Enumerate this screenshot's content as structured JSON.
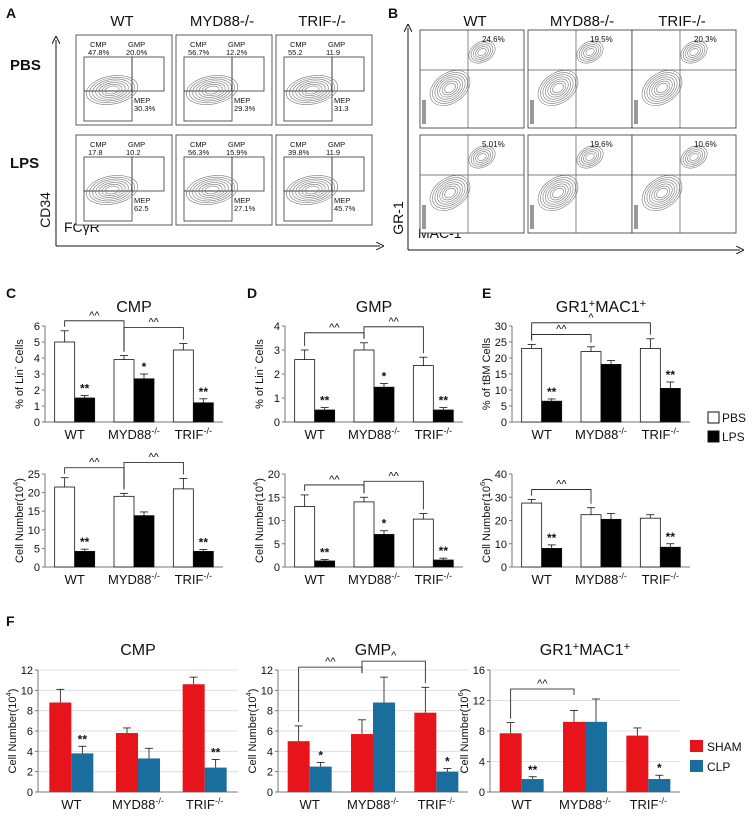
{
  "panel_letters": {
    "A": "A",
    "B": "B",
    "C": "C",
    "D": "D",
    "E": "E",
    "F": "F"
  },
  "flow_a": {
    "col_headers": [
      "WT",
      "MYD88-/-",
      "TRIF-/-"
    ],
    "row_labels": [
      "PBS",
      "LPS"
    ],
    "y_axis": "CD34",
    "x_axis": "FCγR",
    "panels": [
      [
        {
          "cmp": [
            "CMP",
            "47.8%"
          ],
          "gmp": [
            "GMP",
            "20.0%"
          ],
          "mep": [
            "MEP",
            "30.3%"
          ]
        },
        {
          "cmp": [
            "CMP",
            "56.7%"
          ],
          "gmp": [
            "GMP",
            "12.2%"
          ],
          "mep": [
            "MEP",
            "29.3%"
          ]
        },
        {
          "cmp": [
            "CMP",
            "55.2"
          ],
          "gmp": [
            "GMP",
            "11.9"
          ],
          "mep": [
            "MEP",
            "31.3"
          ]
        }
      ],
      [
        {
          "cmp": [
            "CMP",
            "17.8"
          ],
          "gmp": [
            "GMP",
            "10.2"
          ],
          "mep": [
            "MEP",
            "62.5"
          ]
        },
        {
          "cmp": [
            "CMP",
            "56.3%"
          ],
          "gmp": [
            "GMP",
            "15.9%"
          ],
          "mep": [
            "MEP",
            "27.1%"
          ]
        },
        {
          "cmp": [
            "CMP",
            "39.8%"
          ],
          "gmp": [
            "GMP",
            "11.9"
          ],
          "mep": [
            "MEP",
            "45.7%"
          ]
        }
      ]
    ]
  },
  "flow_b": {
    "col_headers": [
      "WT",
      "MYD88-/-",
      "TRIF-/-"
    ],
    "y_axis": "GR-1",
    "x_axis": "MAC-1",
    "values": [
      [
        "24.6%",
        "19.5%",
        "20.3%"
      ],
      [
        "5.01%",
        "19.6%",
        "10.6%"
      ]
    ]
  },
  "chart_data": [
    {
      "id": "C1",
      "type": "bar",
      "title": "CMP",
      "ylabel": "% of Lin- Cells",
      "ylim": [
        0,
        6
      ],
      "yticks": [
        0,
        1,
        2,
        3,
        4,
        5,
        6
      ],
      "categories": [
        "WT",
        "MYD88-/-",
        "TRIF-/-"
      ],
      "series": [
        {
          "name": "PBS",
          "values": [
            5.0,
            3.9,
            4.5
          ],
          "errors": [
            0.7,
            0.25,
            0.4
          ]
        },
        {
          "name": "LPS",
          "values": [
            1.5,
            2.7,
            1.2
          ],
          "errors": [
            0.15,
            0.3,
            0.25
          ]
        }
      ],
      "sig": [
        "**",
        "*",
        "**"
      ],
      "brackets": [
        {
          "from": 0,
          "to": 1,
          "label": "^^"
        },
        {
          "from": 1,
          "to": 2,
          "label": "^^"
        }
      ]
    },
    {
      "id": "C2",
      "type": "bar",
      "title": "",
      "ylabel": "Cell Number(10^4)",
      "ylim": [
        0,
        25
      ],
      "yticks": [
        0,
        5,
        10,
        15,
        20,
        25
      ],
      "categories": [
        "WT",
        "MYD88-/-",
        "TRIF-/-"
      ],
      "series": [
        {
          "name": "PBS",
          "values": [
            21.5,
            19,
            21
          ],
          "errors": [
            2.5,
            0.8,
            2.8
          ]
        },
        {
          "name": "LPS",
          "values": [
            4.2,
            13.8,
            4.2
          ],
          "errors": [
            0.6,
            1.0,
            0.5
          ]
        }
      ],
      "sig": [
        "**",
        "",
        "**"
      ],
      "brackets": [
        {
          "from": 0,
          "to": 1,
          "label": "^^"
        },
        {
          "from": 1,
          "to": 2,
          "label": "^^"
        }
      ]
    },
    {
      "id": "D1",
      "type": "bar",
      "title": "GMP",
      "ylabel": "% of Lin- Cells",
      "ylim": [
        0,
        4
      ],
      "yticks": [
        0,
        1,
        2,
        3,
        4
      ],
      "categories": [
        "WT",
        "MYD88-/-",
        "TRIF-/-"
      ],
      "series": [
        {
          "name": "PBS",
          "values": [
            2.6,
            3.0,
            2.35
          ],
          "errors": [
            0.4,
            0.3,
            0.35
          ]
        },
        {
          "name": "LPS",
          "values": [
            0.5,
            1.45,
            0.5
          ],
          "errors": [
            0.1,
            0.15,
            0.1
          ]
        }
      ],
      "sig": [
        "**",
        "*",
        "**"
      ],
      "brackets": [
        {
          "from": 0,
          "to": 1,
          "label": "^^"
        },
        {
          "from": 1,
          "to": 2,
          "label": "^^"
        }
      ]
    },
    {
      "id": "D2",
      "type": "bar",
      "title": "",
      "ylabel": "Cell Number(10^4)",
      "ylim": [
        0,
        20
      ],
      "yticks": [
        0,
        5,
        10,
        15,
        20
      ],
      "categories": [
        "WT",
        "MYD88-/-",
        "TRIF-/-"
      ],
      "series": [
        {
          "name": "PBS",
          "values": [
            13,
            14,
            10.3
          ],
          "errors": [
            2.5,
            1.0,
            1.2
          ]
        },
        {
          "name": "LPS",
          "values": [
            1.3,
            7,
            1.5
          ],
          "errors": [
            0.3,
            0.8,
            0.4
          ]
        }
      ],
      "sig": [
        "**",
        "*",
        "**"
      ],
      "brackets": [
        {
          "from": 0,
          "to": 1,
          "label": "^^"
        },
        {
          "from": 1,
          "to": 2,
          "label": "^^"
        }
      ]
    },
    {
      "id": "E1",
      "type": "bar",
      "title": "GR1+MAC1+",
      "ylabel": "% of tBM Cells",
      "ylim": [
        0,
        30
      ],
      "yticks": [
        0,
        5,
        10,
        15,
        20,
        25,
        30
      ],
      "categories": [
        "WT",
        "MYD88-/-",
        "TRIF-/-"
      ],
      "series": [
        {
          "name": "PBS",
          "values": [
            23,
            22,
            23
          ],
          "errors": [
            1.2,
            1.5,
            3.0
          ]
        },
        {
          "name": "LPS",
          "values": [
            6.5,
            18,
            10.5
          ],
          "errors": [
            0.7,
            1.2,
            2.0
          ]
        }
      ],
      "sig": [
        "**",
        "",
        "**"
      ],
      "brackets": [
        {
          "from": 0,
          "to": 1,
          "label": "^^"
        },
        {
          "from": 0,
          "to": 2,
          "label": "^"
        }
      ]
    },
    {
      "id": "E2",
      "type": "bar",
      "title": "",
      "ylabel": "Cell Number(10^6)",
      "ylim": [
        0,
        40
      ],
      "yticks": [
        0,
        10,
        20,
        30,
        40
      ],
      "categories": [
        "WT",
        "MYD88-/-",
        "TRIF-/-"
      ],
      "series": [
        {
          "name": "PBS",
          "values": [
            27.5,
            22.5,
            21
          ],
          "errors": [
            1.5,
            3.0,
            1.5
          ]
        },
        {
          "name": "LPS",
          "values": [
            8,
            20.5,
            8.5
          ],
          "errors": [
            1.5,
            2.5,
            1.5
          ]
        }
      ],
      "sig": [
        "**",
        "",
        "**"
      ],
      "brackets": [
        {
          "from": 0,
          "to": 1,
          "label": "^^"
        }
      ]
    },
    {
      "id": "F1",
      "type": "bar",
      "title": "CMP",
      "ylabel": "Cell Number(10^4)",
      "ylim": [
        0,
        12
      ],
      "yticks": [
        0,
        2,
        4,
        6,
        8,
        10,
        12
      ],
      "categories": [
        "WT",
        "MYD88-/-",
        "TRIF-/-"
      ],
      "series": [
        {
          "name": "SHAM",
          "values": [
            8.8,
            5.8,
            10.6
          ],
          "errors": [
            1.3,
            0.5,
            0.7
          ]
        },
        {
          "name": "CLP",
          "values": [
            3.8,
            3.3,
            2.4
          ],
          "errors": [
            0.7,
            1.0,
            0.8
          ]
        }
      ],
      "sig": [
        "**",
        "",
        "**"
      ],
      "brackets": []
    },
    {
      "id": "F2",
      "type": "bar",
      "title": "GMP",
      "ylabel": "Cell Number(10^4)",
      "ylim": [
        0,
        12
      ],
      "yticks": [
        0,
        2,
        4,
        6,
        8,
        10,
        12
      ],
      "categories": [
        "WT",
        "MYD88-/-",
        "TRIF-/-"
      ],
      "series": [
        {
          "name": "SHAM",
          "values": [
            5,
            5.7,
            7.8
          ],
          "errors": [
            1.5,
            1.4,
            2.5
          ]
        },
        {
          "name": "CLP",
          "values": [
            2.5,
            8.8,
            2
          ],
          "errors": [
            0.4,
            2.5,
            0.3
          ]
        }
      ],
      "sig": [
        "*",
        "",
        "*"
      ],
      "brackets": [
        {
          "from": 0,
          "to": 1,
          "label": "^^"
        },
        {
          "from": 1,
          "to": 2,
          "label": "^"
        }
      ]
    },
    {
      "id": "F3",
      "type": "bar",
      "title": "GR1+MAC1+",
      "ylabel": "Cell Number(10^6)",
      "ylim": [
        0,
        16
      ],
      "yticks": [
        0,
        4,
        8,
        12,
        16
      ],
      "categories": [
        "WT",
        "MYD88-/-",
        "TRIF-/-"
      ],
      "series": [
        {
          "name": "SHAM",
          "values": [
            7.7,
            9.2,
            7.4
          ],
          "errors": [
            1.4,
            1.5,
            1.0
          ]
        },
        {
          "name": "CLP",
          "values": [
            1.7,
            9.2,
            1.7
          ],
          "errors": [
            0.3,
            3.0,
            0.5
          ]
        }
      ],
      "sig": [
        "**",
        "",
        "*"
      ],
      "brackets": [
        {
          "from": 0,
          "to": 1,
          "label": "^^"
        }
      ]
    }
  ],
  "legend_cde": [
    "PBS",
    "LPS"
  ],
  "legend_f": [
    "SHAM",
    "CLP"
  ],
  "colors": {
    "PBS": "#ffffff",
    "LPS": "#000000",
    "SHAM": "#e8141b",
    "CLP": "#1a6e9e"
  }
}
